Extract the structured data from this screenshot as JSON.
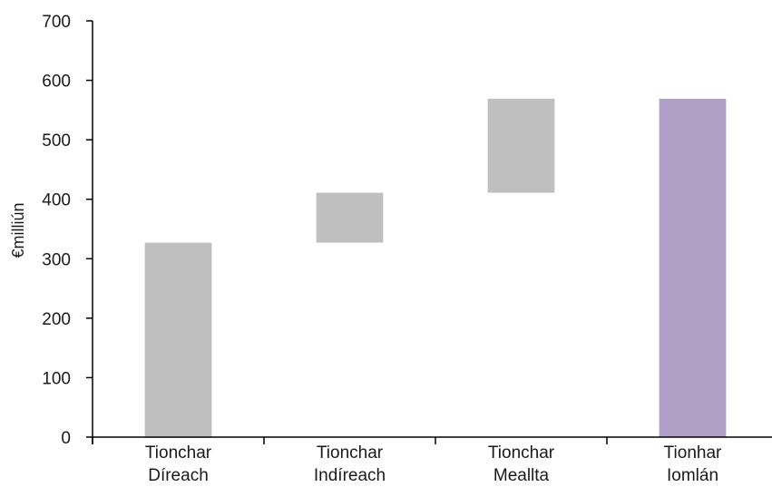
{
  "chart_data": {
    "type": "bar",
    "subtype": "waterfall",
    "ylabel": "€milliún",
    "ylim": [
      0,
      700
    ],
    "yticks": [
      "0",
      "100",
      "200",
      "300",
      "400",
      "500",
      "600",
      "700"
    ],
    "grid": false,
    "legend": "none",
    "categories": [
      {
        "line1": "Tionchar",
        "line2": "Díreach"
      },
      {
        "line1": "Tionchar",
        "line2": "Indíreach"
      },
      {
        "line1": "Tionchar",
        "line2": "Meallta"
      },
      {
        "line1": "Tionhar",
        "line2": "Iomlán"
      }
    ],
    "bars": [
      {
        "start": 0,
        "end": 327,
        "color": "#bfbfbf"
      },
      {
        "start": 327,
        "end": 411,
        "color": "#bfbfbf"
      },
      {
        "start": 411,
        "end": 569,
        "color": "#bfbfbf"
      },
      {
        "start": 0,
        "end": 569,
        "color": "#b09fc6"
      }
    ]
  }
}
